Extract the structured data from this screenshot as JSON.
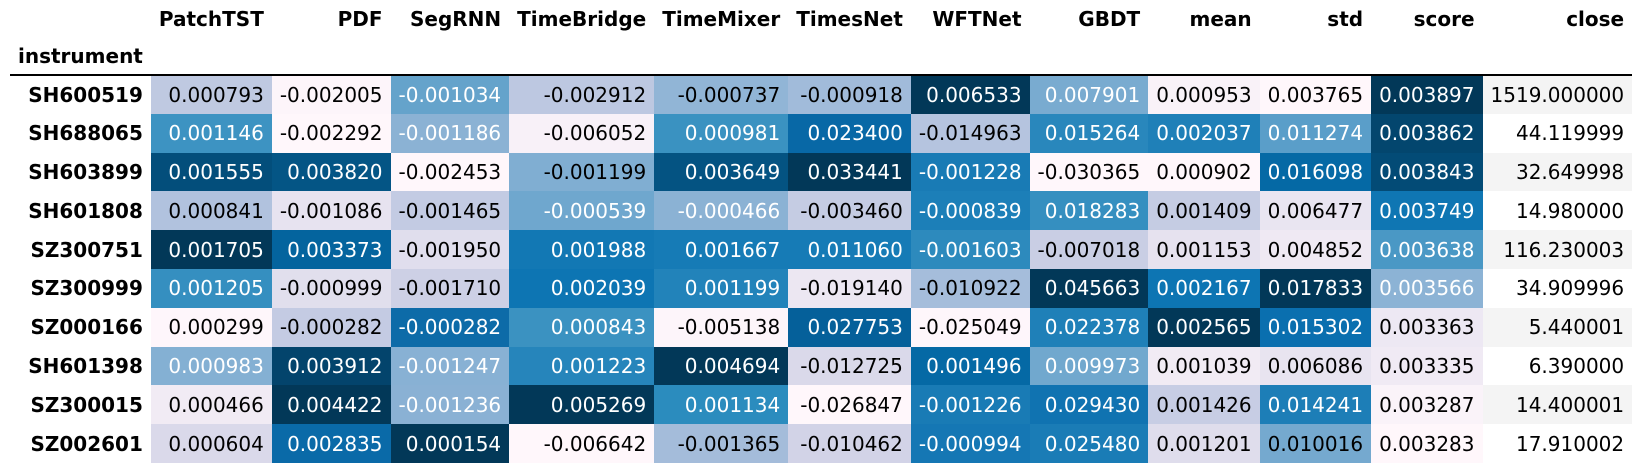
{
  "table": {
    "index_name": "instrument",
    "columns": [
      "PatchTST",
      "PDF",
      "SegRNN",
      "TimeBridge",
      "TimeMixer",
      "TimesNet",
      "WFTNet",
      "GBDT",
      "mean",
      "std",
      "score",
      "close"
    ],
    "rows": [
      {
        "instrument": "SH600519",
        "values": [
          "0.000793",
          "-0.002005",
          "-0.001034",
          "-0.002912",
          "-0.000737",
          "-0.000918",
          "0.006533",
          "0.007901",
          "0.000953",
          "0.003765",
          "0.003897",
          "1519.000000"
        ],
        "fills": [
          "#bfc9e1",
          "#fdf5fa",
          "#65a3cb",
          "#bdc8e1",
          "#91b5d6",
          "#a1bbda",
          "#023858",
          "#79abd0",
          "#f9f2f8",
          "#fff7fb",
          "#023858",
          "#f4f4f4"
        ],
        "text": [
          "#000000",
          "#000000",
          "#ffffff",
          "#000000",
          "#000000",
          "#000000",
          "#ffffff",
          "#ffffff",
          "#000000",
          "#000000",
          "#ffffff",
          "#000000"
        ]
      },
      {
        "instrument": "SH688065",
        "values": [
          "0.001146",
          "-0.002292",
          "-0.001186",
          "-0.006052",
          "0.000981",
          "0.023400",
          "-0.014963",
          "0.015264",
          "0.002037",
          "0.011274",
          "0.003862",
          "44.119999"
        ],
        "fills": [
          "#3d93c2",
          "#fff7fb",
          "#8bb2d4",
          "#f8f1f8",
          "#3a92c1",
          "#0868a6",
          "#b5c4df",
          "#2987bc",
          "#1f80b8",
          "#5a9ec9",
          "#03466e",
          "#ffffff"
        ],
        "text": [
          "#ffffff",
          "#000000",
          "#ffffff",
          "#000000",
          "#ffffff",
          "#ffffff",
          "#000000",
          "#ffffff",
          "#ffffff",
          "#ffffff",
          "#ffffff",
          "#000000"
        ]
      },
      {
        "instrument": "SH603899",
        "values": [
          "0.001555",
          "0.003820",
          "-0.002453",
          "-0.001199",
          "0.003649",
          "0.033441",
          "-0.001228",
          "-0.030365",
          "0.000902",
          "0.016098",
          "0.003843",
          "32.649998"
        ],
        "fills": [
          "#034e7b",
          "#045585",
          "#fff7fb",
          "#80aed2",
          "#045382",
          "#023858",
          "#197bb5",
          "#fff7fb",
          "#fff7fb",
          "#0569a5",
          "#034b76",
          "#f4f4f4"
        ],
        "text": [
          "#ffffff",
          "#ffffff",
          "#000000",
          "#000000",
          "#ffffff",
          "#ffffff",
          "#ffffff",
          "#000000",
          "#000000",
          "#ffffff",
          "#ffffff",
          "#000000"
        ]
      },
      {
        "instrument": "SH601808",
        "values": [
          "0.000841",
          "-0.001086",
          "-0.001465",
          "-0.000539",
          "-0.000466",
          "-0.003460",
          "-0.000839",
          "0.018283",
          "0.001409",
          "0.006477",
          "0.003749",
          "14.980000"
        ],
        "fills": [
          "#b1c2de",
          "#e7e3f0",
          "#c3cbe3",
          "#6fa7ce",
          "#8bb2d4",
          "#c5cce3",
          "#1c7fb8",
          "#358fc0",
          "#c5cce3",
          "#e9e5f1",
          "#0f76b3",
          "#ffffff"
        ],
        "text": [
          "#000000",
          "#000000",
          "#000000",
          "#ffffff",
          "#ffffff",
          "#000000",
          "#ffffff",
          "#ffffff",
          "#000000",
          "#000000",
          "#ffffff",
          "#000000"
        ]
      },
      {
        "instrument": "SZ300751",
        "values": [
          "0.001705",
          "0.003373",
          "-0.001950",
          "0.001988",
          "0.001667",
          "0.011060",
          "-0.001603",
          "-0.007018",
          "0.001153",
          "0.004852",
          "0.003638",
          "116.230003"
        ],
        "fills": [
          "#023858",
          "#04649e",
          "#e0deed",
          "#1278b4",
          "#167bb6",
          "#167bb6",
          "#2d8abd",
          "#c9cee4",
          "#e6e2ef",
          "#efe9f3",
          "#4a98c5",
          "#f4f4f4"
        ],
        "text": [
          "#ffffff",
          "#ffffff",
          "#000000",
          "#ffffff",
          "#ffffff",
          "#ffffff",
          "#ffffff",
          "#000000",
          "#000000",
          "#000000",
          "#ffffff",
          "#000000"
        ]
      },
      {
        "instrument": "SZ300999",
        "values": [
          "0.001205",
          "-0.000999",
          "-0.001710",
          "0.002039",
          "0.001199",
          "-0.019140",
          "-0.010922",
          "0.045663",
          "0.002167",
          "0.017833",
          "0.003566",
          "34.909996"
        ],
        "fills": [
          "#358fc0",
          "#e1dfed",
          "#cdd0e5",
          "#0d75b3",
          "#2283ba",
          "#ece7f2",
          "#a5bddb",
          "#023858",
          "#0d75b3",
          "#023858",
          "#8cb3d5",
          "#ffffff"
        ],
        "text": [
          "#ffffff",
          "#000000",
          "#000000",
          "#ffffff",
          "#ffffff",
          "#000000",
          "#000000",
          "#ffffff",
          "#ffffff",
          "#ffffff",
          "#ffffff",
          "#000000"
        ]
      },
      {
        "instrument": "SZ000166",
        "values": [
          "0.000299",
          "-0.000282",
          "-0.000282",
          "0.000843",
          "-0.005138",
          "0.027753",
          "-0.025049",
          "0.022378",
          "0.002565",
          "0.015302",
          "0.003363",
          "5.440001"
        ],
        "fills": [
          "#fef6fb",
          "#c4cbe3",
          "#0d6ba8",
          "#3b92c1",
          "#fdf5fa",
          "#05609a",
          "#fef6fb",
          "#1f80b8",
          "#023858",
          "#0a6faf",
          "#ede8f3",
          "#f4f4f4"
        ],
        "text": [
          "#000000",
          "#000000",
          "#ffffff",
          "#ffffff",
          "#000000",
          "#ffffff",
          "#000000",
          "#ffffff",
          "#ffffff",
          "#ffffff",
          "#000000",
          "#000000"
        ]
      },
      {
        "instrument": "SH601398",
        "values": [
          "0.000983",
          "0.003912",
          "-0.001247",
          "0.001223",
          "0.004694",
          "-0.012725",
          "0.001496",
          "0.009973",
          "0.001039",
          "0.006086",
          "0.003335",
          "6.390000"
        ],
        "fills": [
          "#84b0d3",
          "#03446c",
          "#88b1d4",
          "#2685bb",
          "#023858",
          "#dad9ea",
          "#0569a5",
          "#71a8ce",
          "#f1ebf4",
          "#e8e4f0",
          "#f0eaf4",
          "#ffffff"
        ],
        "text": [
          "#ffffff",
          "#ffffff",
          "#ffffff",
          "#ffffff",
          "#ffffff",
          "#000000",
          "#ffffff",
          "#ffffff",
          "#000000",
          "#000000",
          "#000000",
          "#000000"
        ]
      },
      {
        "instrument": "SZ300015",
        "values": [
          "0.000466",
          "0.004422",
          "-0.001236",
          "0.005269",
          "0.001134",
          "-0.026847",
          "-0.001226",
          "0.029430",
          "0.001426",
          "0.014241",
          "0.003287",
          "14.400001"
        ],
        "fills": [
          "#f1ebf4",
          "#023858",
          "#8ab1d4",
          "#023858",
          "#2b8cbe",
          "#fff7fb",
          "#197bb5",
          "#1073b1",
          "#c7cde4",
          "#1d7eb7",
          "#faf3f9",
          "#f4f4f4"
        ],
        "text": [
          "#000000",
          "#ffffff",
          "#ffffff",
          "#ffffff",
          "#ffffff",
          "#000000",
          "#ffffff",
          "#ffffff",
          "#000000",
          "#ffffff",
          "#000000",
          "#000000"
        ]
      },
      {
        "instrument": "SZ002601",
        "values": [
          "0.000604",
          "0.002835",
          "0.000154",
          "-0.006642",
          "-0.001365",
          "-0.010462",
          "-0.000994",
          "0.025480",
          "0.001201",
          "0.010016",
          "0.003283",
          "17.910002"
        ],
        "fills": [
          "#dad9ea",
          "#0a6aa8",
          "#023858",
          "#fff7fb",
          "#a4bcda",
          "#d2d3e7",
          "#1577b4",
          "#1a7cb6",
          "#dfddec",
          "#75a9cf",
          "#fff7fb",
          "#ffffff"
        ],
        "text": [
          "#000000",
          "#ffffff",
          "#ffffff",
          "#000000",
          "#000000",
          "#000000",
          "#ffffff",
          "#ffffff",
          "#000000",
          "#000000",
          "#000000",
          "#000000"
        ]
      }
    ]
  }
}
